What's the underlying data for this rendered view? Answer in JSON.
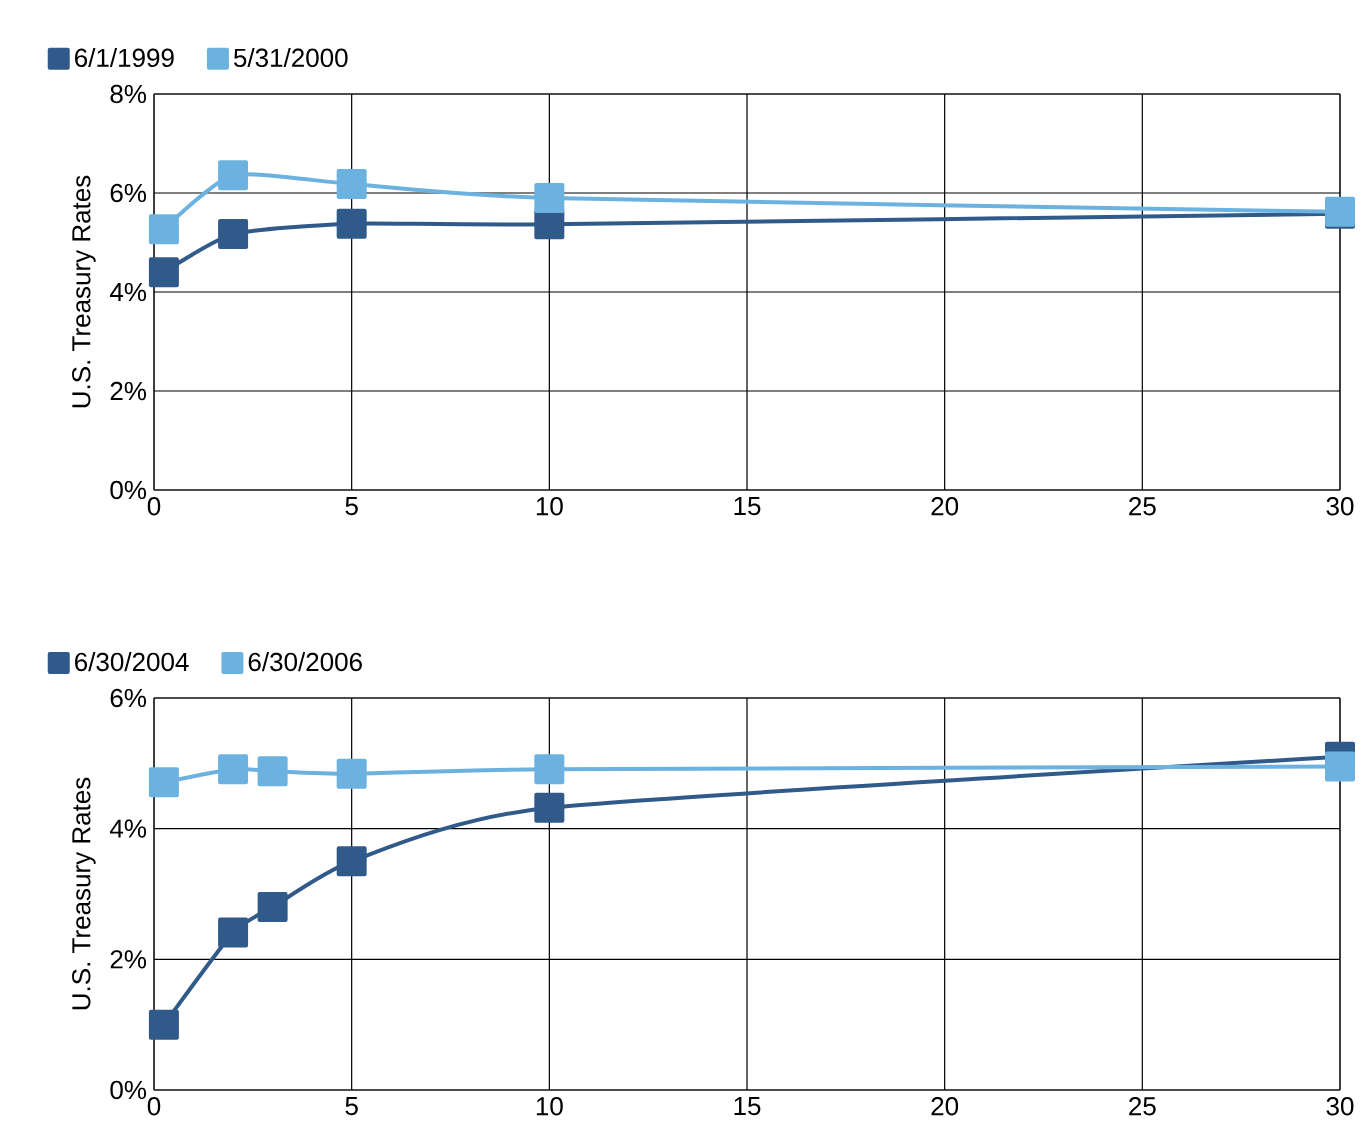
{
  "chart_data": [
    {
      "type": "line",
      "ylabel": "U.S. Treasury Rates",
      "legend": "top left",
      "grid": true,
      "marker": "square",
      "xlim": [
        0,
        30
      ],
      "xticks": [
        0,
        5,
        10,
        15,
        20,
        25,
        30
      ],
      "ylim": [
        0,
        8
      ],
      "yticks": [
        {
          "value": 0,
          "label": "0%"
        },
        {
          "value": 2,
          "label": "2%"
        },
        {
          "value": 4,
          "label": "4%"
        },
        {
          "value": 6,
          "label": "6%"
        },
        {
          "value": 8,
          "label": "8%"
        }
      ],
      "x": [
        0.25,
        2,
        5,
        10,
        30
      ],
      "series": [
        {
          "name": "6/1/1999",
          "color": "#305a8a",
          "values": [
            4.4,
            5.17,
            5.38,
            5.37,
            5.58
          ]
        },
        {
          "name": "5/31/2000",
          "color": "#6cb2e0",
          "values": [
            5.27,
            6.36,
            6.18,
            5.9,
            5.62
          ]
        }
      ]
    },
    {
      "type": "line",
      "ylabel": "U.S. Treasury Rates",
      "legend": "top left",
      "grid": true,
      "marker": "square",
      "xlim": [
        0,
        30
      ],
      "xticks": [
        0,
        5,
        10,
        15,
        20,
        25,
        30
      ],
      "ylim": [
        0,
        6
      ],
      "yticks": [
        {
          "value": 0,
          "label": "0%"
        },
        {
          "value": 2,
          "label": "2%"
        },
        {
          "value": 4,
          "label": "4%"
        },
        {
          "value": 6,
          "label": "6%"
        }
      ],
      "x": [
        0.25,
        2,
        3,
        5,
        10,
        30
      ],
      "series": [
        {
          "name": "6/30/2004",
          "color": "#305a8a",
          "values": [
            1.0,
            2.41,
            2.8,
            3.5,
            4.32,
            5.1
          ]
        },
        {
          "name": "6/30/2006",
          "color": "#6cb2e0",
          "values": [
            4.71,
            4.91,
            4.88,
            4.84,
            4.91,
            4.95
          ]
        }
      ]
    }
  ]
}
